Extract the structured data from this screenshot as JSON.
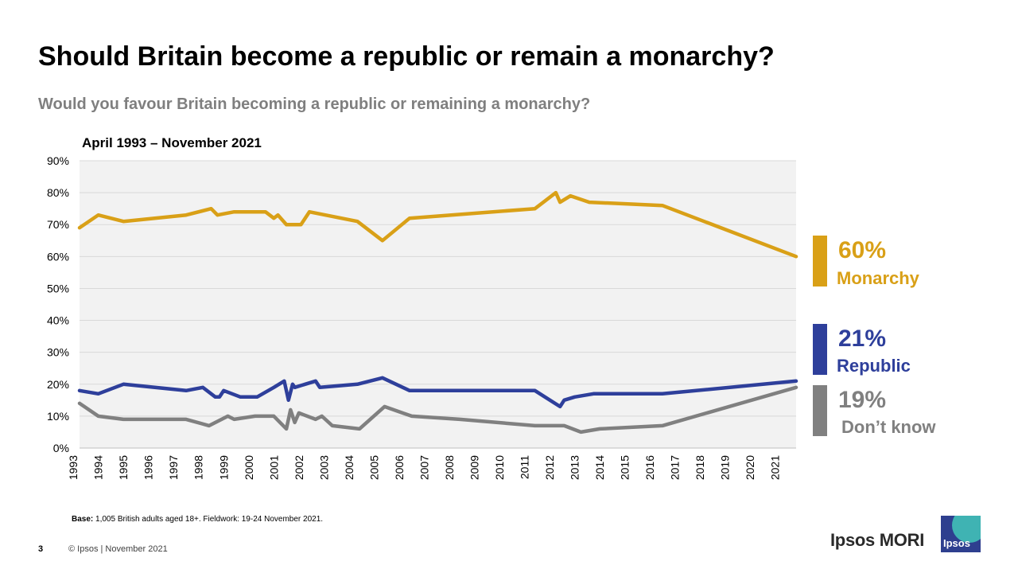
{
  "title": "Should Britain become a republic or remain a monarchy?",
  "subtitle": "Would you favour Britain becoming a republic or remaining a monarchy?",
  "date_range": "April 1993 – November 2021",
  "footer": {
    "base_label": "Base:",
    "base_text": " 1,005 British adults aged 18+. Fieldwork: 19-24 November 2021.",
    "page_number": "3",
    "copyright": "© Ipsos | November 2021",
    "brand": "Ipsos MORI",
    "logo_text": "Ipsos"
  },
  "legend": [
    {
      "value": "60%",
      "label": "Monarchy",
      "color": "#d9a017"
    },
    {
      "value": "21%",
      "label": "Republic",
      "color": "#2e3f9b"
    },
    {
      "value": "19%",
      "label": "Don’t know",
      "color": "#808080"
    }
  ],
  "chart_data": {
    "type": "line",
    "x_type": "date",
    "xlim": [
      "1993-04",
      "2021-11"
    ],
    "ylim": [
      0,
      90
    ],
    "y_ticks": [
      "0%",
      "10%",
      "20%",
      "30%",
      "40%",
      "50%",
      "60%",
      "70%",
      "80%",
      "90%"
    ],
    "x_tick_labels": [
      "1993",
      "1994",
      "1995",
      "1996",
      "1997",
      "1998",
      "1999",
      "2000",
      "2001",
      "2002",
      "2003",
      "2004",
      "2005",
      "2006",
      "2007",
      "2008",
      "2009",
      "2010",
      "2011",
      "2012",
      "2013",
      "2014",
      "2015",
      "2016",
      "2017",
      "2018",
      "2019",
      "2020",
      "2021"
    ],
    "grid": true,
    "plot_background": "#f2f2f2",
    "series": [
      {
        "name": "Monarchy",
        "color": "#d9a017",
        "points": [
          [
            "1993-04",
            69
          ],
          [
            "1994-01",
            73
          ],
          [
            "1995-01",
            71
          ],
          [
            "1997-07",
            73
          ],
          [
            "1998-07",
            75
          ],
          [
            "1998-10",
            73
          ],
          [
            "1999-06",
            74
          ],
          [
            "2000-09",
            74
          ],
          [
            "2001-01",
            72
          ],
          [
            "2001-03",
            73
          ],
          [
            "2001-07",
            70
          ],
          [
            "2002-02",
            70
          ],
          [
            "2002-06",
            74
          ],
          [
            "2004-05",
            71
          ],
          [
            "2005-05",
            65
          ],
          [
            "2006-06",
            72
          ],
          [
            "2011-06",
            75
          ],
          [
            "2012-04",
            80
          ],
          [
            "2012-06",
            77
          ],
          [
            "2012-11",
            79
          ],
          [
            "2013-08",
            77
          ],
          [
            "2016-07",
            76
          ],
          [
            "2021-11",
            60
          ]
        ]
      },
      {
        "name": "Republic",
        "color": "#2e3f9b",
        "points": [
          [
            "1993-04",
            18
          ],
          [
            "1994-01",
            17
          ],
          [
            "1995-01",
            20
          ],
          [
            "1997-07",
            18
          ],
          [
            "1998-03",
            19
          ],
          [
            "1998-09",
            16
          ],
          [
            "1998-11",
            16
          ],
          [
            "1999-01",
            18
          ],
          [
            "1999-09",
            16
          ],
          [
            "2000-05",
            16
          ],
          [
            "2001-01",
            19
          ],
          [
            "2001-06",
            21
          ],
          [
            "2001-08",
            15
          ],
          [
            "2001-10",
            20
          ],
          [
            "2001-11",
            19
          ],
          [
            "2002-09",
            21
          ],
          [
            "2002-11",
            19
          ],
          [
            "2004-05",
            20
          ],
          [
            "2005-05",
            22
          ],
          [
            "2006-06",
            18
          ],
          [
            "2011-06",
            18
          ],
          [
            "2012-06",
            13
          ],
          [
            "2012-08",
            15
          ],
          [
            "2013-01",
            16
          ],
          [
            "2013-10",
            17
          ],
          [
            "2016-07",
            17
          ],
          [
            "2021-11",
            21
          ]
        ]
      },
      {
        "name": "Don’t know",
        "color": "#808080",
        "points": [
          [
            "1993-04",
            14
          ],
          [
            "1994-01",
            10
          ],
          [
            "1995-01",
            9
          ],
          [
            "1997-07",
            9
          ],
          [
            "1998-06",
            7
          ],
          [
            "1999-03",
            10
          ],
          [
            "1999-06",
            9
          ],
          [
            "2000-04",
            10
          ],
          [
            "2001-01",
            10
          ],
          [
            "2001-07",
            6
          ],
          [
            "2001-09",
            12
          ],
          [
            "2001-11",
            8
          ],
          [
            "2002-01",
            11
          ],
          [
            "2002-09",
            9
          ],
          [
            "2002-12",
            10
          ],
          [
            "2003-05",
            7
          ],
          [
            "2004-06",
            6
          ],
          [
            "2005-06",
            13
          ],
          [
            "2006-07",
            10
          ],
          [
            "2008-06",
            9
          ],
          [
            "2011-06",
            7
          ],
          [
            "2012-08",
            7
          ],
          [
            "2013-04",
            5
          ],
          [
            "2014-01",
            6
          ],
          [
            "2016-07",
            7
          ],
          [
            "2021-11",
            19
          ]
        ]
      }
    ]
  }
}
